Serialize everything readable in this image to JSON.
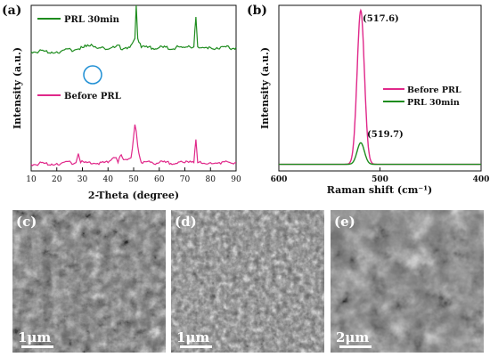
{
  "figure": {
    "panels": [
      "(a)",
      "(b)",
      "(c)",
      "(d)",
      "(e)"
    ],
    "scale_bars": [
      "1μm",
      "1μm",
      "2μm"
    ]
  },
  "chart_data": [
    {
      "type": "line",
      "panel": "(a)",
      "xlabel": "2-Theta (degree)",
      "ylabel": "Intensity (a.u.)",
      "xlim": [
        10,
        90
      ],
      "xticks": [
        10,
        20,
        30,
        40,
        50,
        60,
        70,
        80,
        90
      ],
      "ylim": [
        0,
        1
      ],
      "grid": false,
      "legend_position": "inline",
      "series": [
        {
          "name": "PRL 30min",
          "color": "#1e8c1e",
          "x": [
            10,
            20,
            28,
            30,
            33,
            36,
            40,
            43,
            44,
            45,
            47,
            49,
            50.5,
            51,
            51.6,
            53,
            60,
            70,
            73.5,
            74.3,
            75,
            80,
            90
          ],
          "y": [
            0.72,
            0.72,
            0.735,
            0.745,
            0.755,
            0.74,
            0.735,
            0.75,
            0.76,
            0.735,
            0.745,
            0.76,
            0.8,
            1.0,
            0.8,
            0.745,
            0.745,
            0.745,
            0.75,
            0.93,
            0.75,
            0.745,
            0.745
          ]
        },
        {
          "name": "Before PRL",
          "color": "#e0288a",
          "x": [
            10,
            20,
            27.5,
            28.4,
            29.3,
            40,
            43.2,
            43.9,
            44.7,
            47,
            49,
            50.5,
            51,
            51.6,
            53,
            60,
            70,
            73.5,
            74.3,
            75,
            80,
            90
          ],
          "y": [
            0.04,
            0.045,
            0.05,
            0.105,
            0.05,
            0.05,
            0.08,
            0.05,
            0.09,
            0.07,
            0.08,
            0.28,
            0.24,
            0.15,
            0.05,
            0.05,
            0.05,
            0.05,
            0.19,
            0.05,
            0.05,
            0.05
          ]
        }
      ]
    },
    {
      "type": "line",
      "panel": "(b)",
      "xlabel": "Raman shift (cm⁻¹)",
      "ylabel": "Intensity (a.u.)",
      "xlim": [
        600,
        400
      ],
      "xticks": [
        600,
        500,
        400
      ],
      "ylim": [
        0,
        1
      ],
      "grid": false,
      "legend_position": "right",
      "annotations": [
        "(517.6)",
        "(519.7)"
      ],
      "series": [
        {
          "name": "Before PRL",
          "color": "#e0288a",
          "peak_center": 519,
          "peak_height": 0.93,
          "peak_width": 3.6,
          "baseline": 0.04
        },
        {
          "name": "PRL 30min",
          "color": "#1e8c1e",
          "peak_center": 519,
          "peak_height": 0.13,
          "peak_width": 3.6,
          "baseline": 0.04
        }
      ]
    }
  ]
}
